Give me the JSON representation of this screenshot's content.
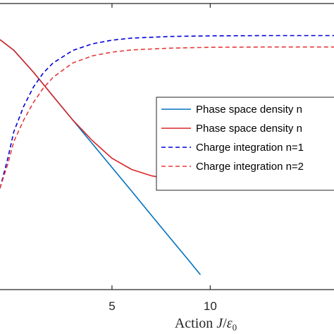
{
  "chart_data": {
    "type": "line",
    "xlabel": "Action J/ε₀",
    "xlim": [
      -0.7,
      16.3
    ],
    "ylim": [
      0,
      1
    ],
    "x_ticks": [
      5,
      10
    ],
    "x_tick_labels": [
      "5",
      "10"
    ],
    "grid": false,
    "legend_position": "right",
    "series": [
      {
        "name": "Phase space density n",
        "color": "#0072BD",
        "dash": "solid",
        "x": [
          -0.7,
          0.0,
          1.0,
          2.0,
          3.0,
          4.0,
          5.0,
          6.0,
          7.0,
          8.0,
          9.0,
          9.5
        ],
        "y": [
          0.874,
          0.837,
          0.76,
          0.676,
          0.593,
          0.51,
          0.427,
          0.344,
          0.26,
          0.177,
          0.094,
          0.052
        ]
      },
      {
        "name": "Phase space density n",
        "color": "#D62728",
        "dash": "solid",
        "x": [
          -0.7,
          0.0,
          1.0,
          2.0,
          3.0,
          4.0,
          5.0,
          6.0,
          7.0,
          8.0,
          9.0,
          10.0,
          11.0,
          12.0,
          13.0,
          14.0,
          15.0,
          16.3
        ],
        "y": [
          0.874,
          0.837,
          0.76,
          0.676,
          0.593,
          0.521,
          0.459,
          0.42,
          0.398,
          0.386,
          0.377,
          0.371,
          0.366,
          0.362,
          0.359,
          0.356,
          0.354,
          0.352
        ]
      },
      {
        "name": "Charge integration n=1",
        "color": "#0000DD",
        "dash": "dashed",
        "x": [
          -0.7,
          -0.3,
          0.0,
          0.5,
          1.0,
          1.5,
          2.0,
          3.0,
          4.0,
          5.0,
          6.0,
          8.0,
          10.0,
          13.0,
          16.3
        ],
        "y": [
          0.354,
          0.46,
          0.551,
          0.64,
          0.708,
          0.757,
          0.792,
          0.836,
          0.859,
          0.872,
          0.879,
          0.885,
          0.887,
          0.888,
          0.888
        ]
      },
      {
        "name": "Charge integration n=2",
        "color": "#E8393A",
        "dash": "dashed",
        "x": [
          -0.7,
          -0.3,
          0.0,
          0.5,
          1.0,
          1.5,
          2.0,
          3.0,
          4.0,
          5.0,
          6.0,
          8.0,
          10.0,
          13.0,
          16.3
        ],
        "y": [
          0.355,
          0.44,
          0.517,
          0.592,
          0.654,
          0.704,
          0.742,
          0.792,
          0.817,
          0.83,
          0.838,
          0.844,
          0.847,
          0.848,
          0.848
        ]
      }
    ],
    "legend": [
      "Phase space density n",
      "Phase space density n",
      "Charge integration n=1",
      "Charge integration n=2"
    ]
  }
}
